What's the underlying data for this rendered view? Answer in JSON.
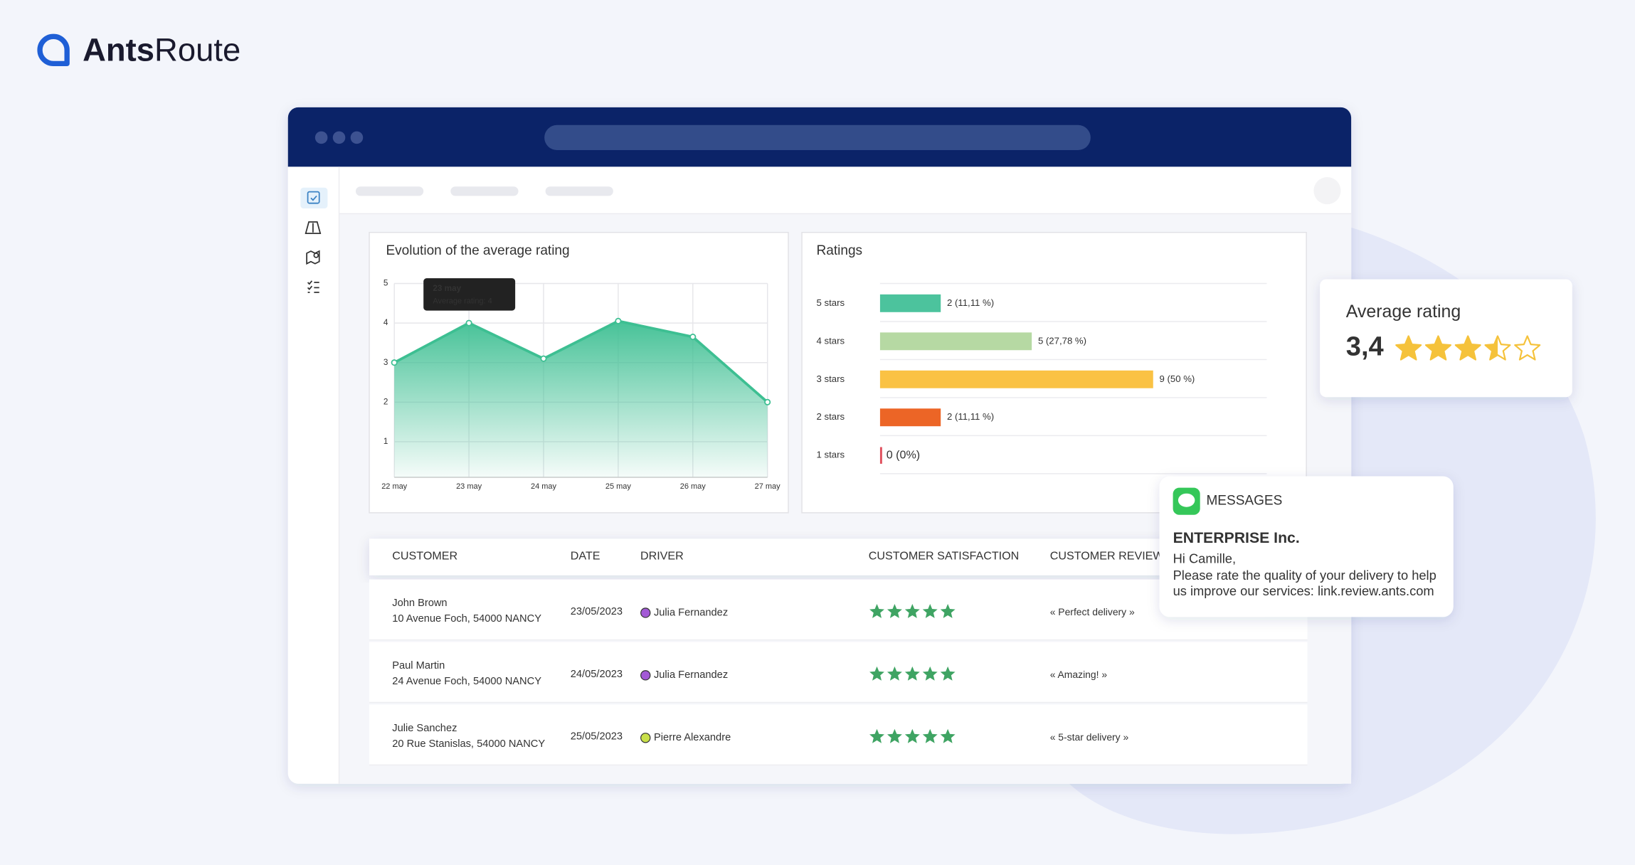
{
  "brand": {
    "bold": "Ants",
    "regular": "Route"
  },
  "line_chart": {
    "type": "line",
    "title": "Evolution of the average rating",
    "categories": [
      "22 may",
      "23 may",
      "24 may",
      "25 may",
      "26 may",
      "27 may"
    ],
    "values": [
      3,
      4,
      3.1,
      4.05,
      3.65,
      2
    ],
    "color": "#3dbf92",
    "ylim": [
      0.1,
      5
    ],
    "yticks": [
      1,
      2,
      3,
      4,
      5
    ],
    "grid": true,
    "tooltip": {
      "title": "23 may",
      "text": "Average rating: 4"
    }
  },
  "ratings_chart": {
    "type": "hbar",
    "title": "Ratings",
    "categories": [
      "5 stars",
      "4 stars",
      "3 stars",
      "2 stars",
      "1 stars"
    ],
    "values": [
      2,
      5,
      9,
      2,
      0
    ],
    "value_labels": [
      "2 (11,11 %)",
      "5 (27,78 %)",
      "9 (50 %)",
      "2 (11,11 %)",
      "0 (0%)"
    ],
    "colors": [
      "#4cc39d",
      "#b6d9a3",
      "#fac244",
      "#ec6526",
      "#e0505d"
    ],
    "xlim": [
      0,
      9
    ]
  },
  "table": {
    "headers": [
      "CUSTOMER",
      "DATE",
      "DRIVER",
      "CUSTOMER SATISFACTION",
      "CUSTOMER REVIEW"
    ],
    "rows": [
      {
        "customer": "John Brown",
        "address": "10 Avenue Foch, 54000 NANCY",
        "date": "23/05/2023",
        "driver": "Julia Fernandez",
        "driver_color": "#a35ad6",
        "satisfaction": 5,
        "review": "« Perfect delivery »"
      },
      {
        "customer": "Paul Martin",
        "address": "24 Avenue Foch, 54000 NANCY",
        "date": "24/05/2023",
        "driver": "Julia Fernandez",
        "driver_color": "#a35ad6",
        "satisfaction": 5,
        "review": "« Amazing! »"
      },
      {
        "customer": "Julie Sanchez",
        "address": "20 Rue Stanislas, 54000 NANCY",
        "date": "25/05/2023",
        "driver": "Pierre Alexandre",
        "driver_color": "#c9e04a",
        "satisfaction": 5,
        "review": "« 5-star delivery »"
      }
    ],
    "star_color": "#3fa463"
  },
  "average_card": {
    "title": "Average rating",
    "value_label": "3,4",
    "value": 3.4,
    "color": "#f5c23b"
  },
  "message": {
    "app": "MESSAGES",
    "sender": "ENTERPRISE Inc.",
    "lines": [
      "Hi Camille,",
      "Please rate the quality of your delivery to help",
      "us improve our services: link.review.ants.com"
    ]
  }
}
